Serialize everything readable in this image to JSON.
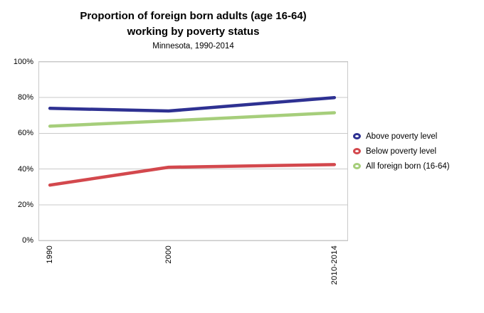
{
  "header": {
    "title_line1": "Proportion of foreign born adults (age 16-64)",
    "title_line2": "working by poverty status",
    "subtitle": "Minnesota, 1990-2014"
  },
  "chart_data": {
    "type": "line",
    "title": "Proportion of foreign born adults (age 16-64) working by poverty status",
    "subtitle": "Minnesota, 1990-2014",
    "categories": [
      "1990",
      "2000",
      "2010-2014"
    ],
    "x_positions_pct": [
      3.5,
      42,
      95.8
    ],
    "series": [
      {
        "name": "Above poverty level",
        "color": "#2E3192",
        "values": [
          74,
          72.5,
          80
        ]
      },
      {
        "name": "Below poverty level",
        "color": "#D3484D",
        "values": [
          31,
          41,
          42.5
        ]
      },
      {
        "name": "All foreign born (16-64)",
        "color": "#A6CE7B",
        "values": [
          64,
          67,
          71.5
        ]
      }
    ],
    "xlabel": "",
    "ylabel": "",
    "ylim": [
      0,
      100
    ],
    "ytick_values": [
      100,
      80,
      60,
      40,
      20,
      0
    ],
    "yticks": [
      "100%",
      "80%",
      "60%",
      "40%",
      "20%",
      "0%"
    ],
    "grid": true,
    "grid_color": "#C9C9C9",
    "legend_position": "right"
  }
}
